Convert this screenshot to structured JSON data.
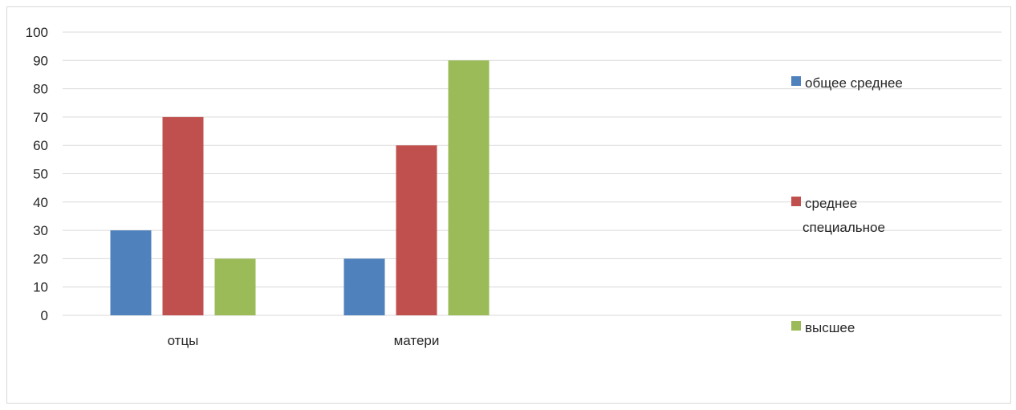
{
  "chart_data": {
    "type": "bar",
    "categories": [
      "отцы",
      "матери"
    ],
    "series": [
      {
        "name": "общее среднее",
        "values": [
          30,
          20
        ],
        "color": "#4f81bd"
      },
      {
        "name": "среднее специальное",
        "values": [
          70,
          60
        ],
        "color": "#c0504d"
      },
      {
        "name": "высшее",
        "values": [
          20,
          90
        ],
        "color": "#9bbb59"
      }
    ],
    "title": "",
    "xlabel": "",
    "ylabel": "",
    "ylim": [
      0,
      100
    ],
    "yticks": [
      0,
      10,
      20,
      30,
      40,
      50,
      60,
      70,
      80,
      90,
      100
    ],
    "grid": true,
    "legend_position": "right",
    "legend_labels": [
      [
        "общее среднее"
      ],
      [
        "среднее",
        "специальное"
      ],
      [
        "высшее"
      ]
    ]
  }
}
